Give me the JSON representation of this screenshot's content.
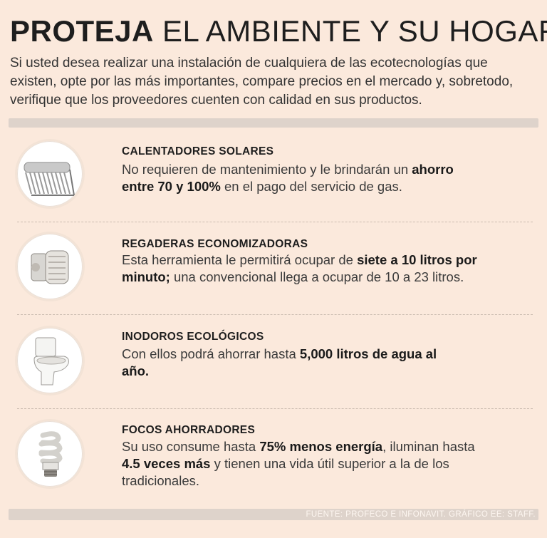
{
  "title": {
    "bold": "PROTEJA",
    "rest": "EL AMBIENTE Y SU HOGAR"
  },
  "intro": "Si usted desea realizar una instalación de cualquiera de las ecotecnologías que existen, opte por las más importantes, compare precios en el mercado y, sobretodo, verifique que los proveedores cuenten con calidad en sus productos.",
  "items": [
    {
      "heading": "CALENTADORES SOLARES",
      "icon": "solar-heater-icon",
      "desc": [
        {
          "text": "No requieren de mantenimiento y le brindarán un ",
          "bold": false
        },
        {
          "text": "ahorro entre 70 y 100%",
          "bold": true
        },
        {
          "text": " en el pago del servicio de gas.",
          "bold": false
        }
      ]
    },
    {
      "heading": "REGADERAS ECONOMIZADORAS",
      "icon": "shower-head-icon",
      "desc": [
        {
          "text": "Esta herramienta le permitirá ocupar de ",
          "bold": false
        },
        {
          "text": "siete a 10 litros por minuto;",
          "bold": true
        },
        {
          "text": " una convencional llega a ocupar de 10 a 23 litros.",
          "bold": false
        }
      ]
    },
    {
      "heading": "INODOROS ECOLÓGICOS",
      "icon": "toilet-icon",
      "desc": [
        {
          "text": "Con ellos podrá ahorrar hasta ",
          "bold": false
        },
        {
          "text": "5,000 litros de agua al año.",
          "bold": true
        }
      ]
    },
    {
      "heading": "FOCOS AHORRADORES",
      "icon": "light-bulb-icon",
      "desc": [
        {
          "text": "Su uso consume hasta ",
          "bold": false
        },
        {
          "text": "75% menos energía",
          "bold": true
        },
        {
          "text": ", iluminan hasta ",
          "bold": false
        },
        {
          "text": "4.5 veces más",
          "bold": true
        },
        {
          "text": " y tienen una vida útil superior a la de los tradicionales.",
          "bold": false
        }
      ]
    }
  ],
  "source": "FUENTE: PROFECO E INFONAVIT.  GRÁFICO EE: STAFF."
}
